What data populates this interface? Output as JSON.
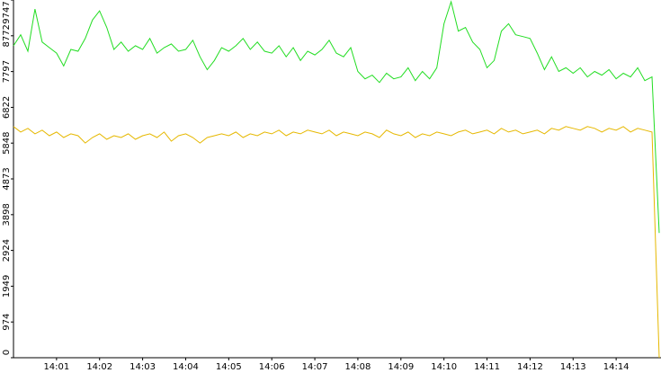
{
  "chart_data": {
    "type": "line",
    "categories": [
      null,
      null,
      null,
      null,
      null,
      null,
      "14:01",
      null,
      null,
      null,
      null,
      null,
      "14:02",
      null,
      null,
      null,
      null,
      null,
      "14:03",
      null,
      null,
      null,
      null,
      null,
      "14:04",
      null,
      null,
      null,
      null,
      null,
      "14:05",
      null,
      null,
      null,
      null,
      null,
      "14:06",
      null,
      null,
      null,
      null,
      null,
      "14:07",
      null,
      null,
      null,
      null,
      null,
      "14:08",
      null,
      null,
      null,
      null,
      null,
      "14:09",
      null,
      null,
      null,
      null,
      null,
      "14:10",
      null,
      null,
      null,
      null,
      null,
      "14:11",
      null,
      null,
      null,
      null,
      null,
      "14:12",
      null,
      null,
      null,
      null,
      null,
      "14:13",
      null,
      null,
      null,
      null,
      null,
      "14:14",
      null,
      null,
      null,
      null,
      null,
      null
    ],
    "series": [
      {
        "color": "#22dd22",
        "values": [
          8500,
          8800,
          8350,
          9500,
          8600,
          8450,
          8300,
          7950,
          8400,
          8350,
          8700,
          9200,
          9450,
          9000,
          8400,
          8600,
          8350,
          8500,
          8400,
          8700,
          8300,
          8450,
          8550,
          8350,
          8400,
          8650,
          8200,
          7850,
          8100,
          8450,
          8350,
          8500,
          8700,
          8400,
          8600,
          8350,
          8300,
          8500,
          8200,
          8450,
          8100,
          8350,
          8250,
          8400,
          8650,
          8300,
          8200,
          8450,
          7800,
          7600,
          7700,
          7500,
          7750,
          7600,
          7650,
          7900,
          7550,
          7800,
          7600,
          7900,
          9100,
          9700,
          8900,
          9000,
          8600,
          8400,
          7900,
          8100,
          8900,
          9100,
          8800,
          8750,
          8700,
          8300,
          7850,
          8200,
          7800,
          7900,
          7750,
          7900,
          7650,
          7800,
          7700,
          7850,
          7600,
          7750,
          7650,
          7900,
          7550,
          7650,
          3400
        ]
      },
      {
        "color": "#e6b800",
        "values": [
          6300,
          6150,
          6250,
          6100,
          6200,
          6050,
          6150,
          6000,
          6100,
          6050,
          5850,
          6000,
          6100,
          5950,
          6050,
          6000,
          6100,
          5950,
          6050,
          6100,
          6000,
          6150,
          5900,
          6050,
          6100,
          6000,
          5850,
          6000,
          6050,
          6100,
          6050,
          6150,
          6000,
          6100,
          6050,
          6150,
          6100,
          6200,
          6050,
          6150,
          6100,
          6200,
          6150,
          6100,
          6200,
          6050,
          6150,
          6100,
          6050,
          6150,
          6100,
          6000,
          6200,
          6100,
          6050,
          6150,
          6000,
          6100,
          6050,
          6150,
          6100,
          6050,
          6150,
          6200,
          6100,
          6150,
          6200,
          6100,
          6250,
          6150,
          6200,
          6100,
          6150,
          6200,
          6100,
          6250,
          6200,
          6300,
          6250,
          6200,
          6300,
          6250,
          6150,
          6250,
          6200,
          6300,
          6150,
          6250,
          6200,
          6150,
          0
        ]
      }
    ],
    "ylim": [
      0,
      9747
    ],
    "yticks": [
      0,
      974,
      1949,
      2924,
      3898,
      4873,
      5848,
      6822,
      7797,
      8772,
      9747
    ]
  }
}
